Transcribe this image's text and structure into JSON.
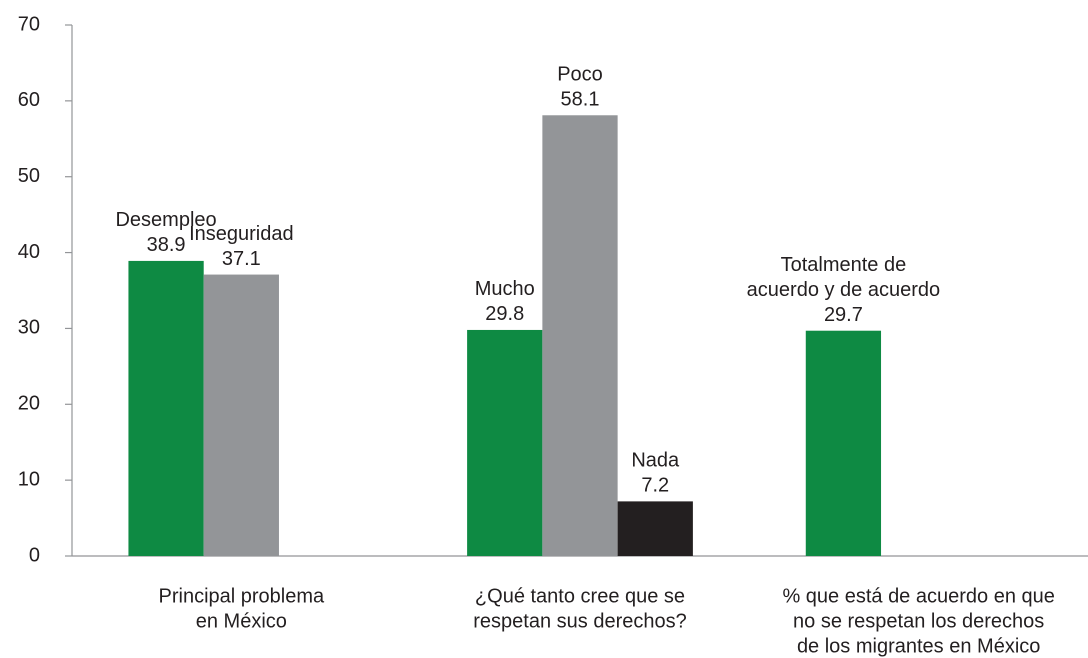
{
  "chart_data": {
    "type": "bar",
    "ylim": [
      0,
      70
    ],
    "yticks": [
      0,
      10,
      20,
      30,
      40,
      50,
      60,
      70
    ],
    "groups": [
      {
        "category": [
          "Principal problema",
          "en México"
        ],
        "bars": [
          {
            "name": [
              "Desempleo"
            ],
            "value": 38.9,
            "color": "#0e8a43"
          },
          {
            "name": [
              "Inseguridad"
            ],
            "value": 37.1,
            "color": "#939598"
          }
        ]
      },
      {
        "category": [
          "¿Qué tanto cree que se",
          "respetan sus derechos?"
        ],
        "bars": [
          {
            "name": [
              "Mucho"
            ],
            "value": 29.8,
            "color": "#0e8a43"
          },
          {
            "name": [
              "Poco"
            ],
            "value": 58.1,
            "color": "#939598"
          },
          {
            "name": [
              "Nada"
            ],
            "value": 7.2,
            "color": "#231f20"
          }
        ]
      },
      {
        "category": [
          "% que está de acuerdo en que",
          "no se respetan los derechos",
          "de los migrantes en México"
        ],
        "bars": [
          {
            "name": [
              "Totalmente de",
              "acuerdo y de acuerdo"
            ],
            "value": 29.7,
            "color": "#0e8a43"
          }
        ]
      }
    ]
  }
}
